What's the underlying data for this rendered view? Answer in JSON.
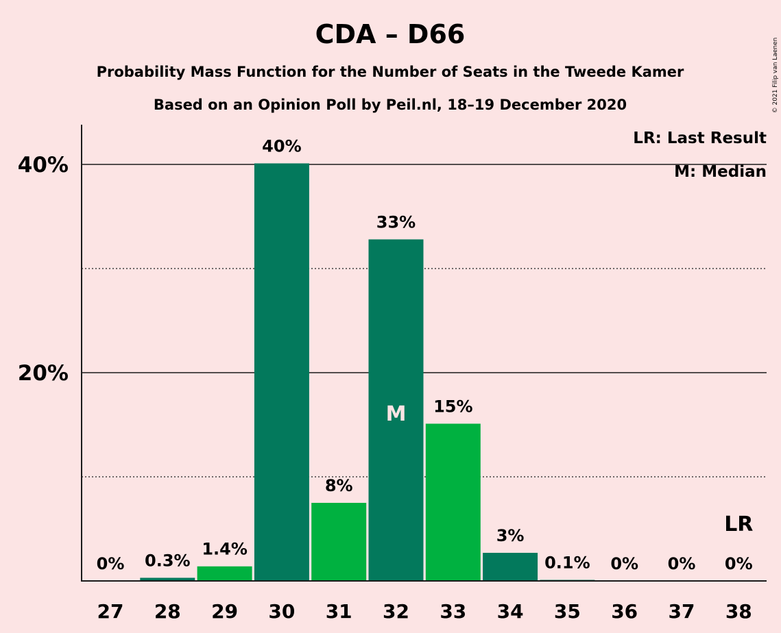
{
  "chart_data": {
    "type": "bar",
    "title": "CDA – D66",
    "subtitle": "Probability Mass Function for the Number of Seats in the Tweede Kamer",
    "subtitle2": "Based on an Opinion Poll by Peil.nl, 18–19 December 2020",
    "credit": "© 2021 Filip van Laenen",
    "categories": [
      "27",
      "28",
      "29",
      "30",
      "31",
      "32",
      "33",
      "34",
      "35",
      "36",
      "37",
      "38"
    ],
    "values": [
      0,
      0.3,
      1.4,
      40.1,
      7.5,
      32.8,
      15.1,
      2.7,
      0.1,
      0,
      0,
      0
    ],
    "value_labels": [
      "0%",
      "0.3%",
      "1.4%",
      "40%",
      "8%",
      "33%",
      "15%",
      "3%",
      "0.1%",
      "0%",
      "0%",
      "0%"
    ],
    "bar_colors": [
      "#03795c",
      "#03795c",
      "#00b140",
      "#03795c",
      "#00b140",
      "#03795c",
      "#00b140",
      "#03795c",
      "#03795c",
      "#03795c",
      "#03795c",
      "#03795c"
    ],
    "ylim": [
      0,
      44
    ],
    "yticks": [
      {
        "value": 20,
        "label": "20%"
      },
      {
        "value": 40,
        "label": "40%"
      }
    ],
    "minor_gridlines": [
      10,
      30
    ],
    "median_category": "32",
    "median_marker": "M",
    "last_result_category": "38",
    "last_result_marker": "LR",
    "legend": [
      "LR: Last Result",
      "M: Median"
    ],
    "legend_position": "top-right",
    "background_color": "#fce4e4"
  }
}
